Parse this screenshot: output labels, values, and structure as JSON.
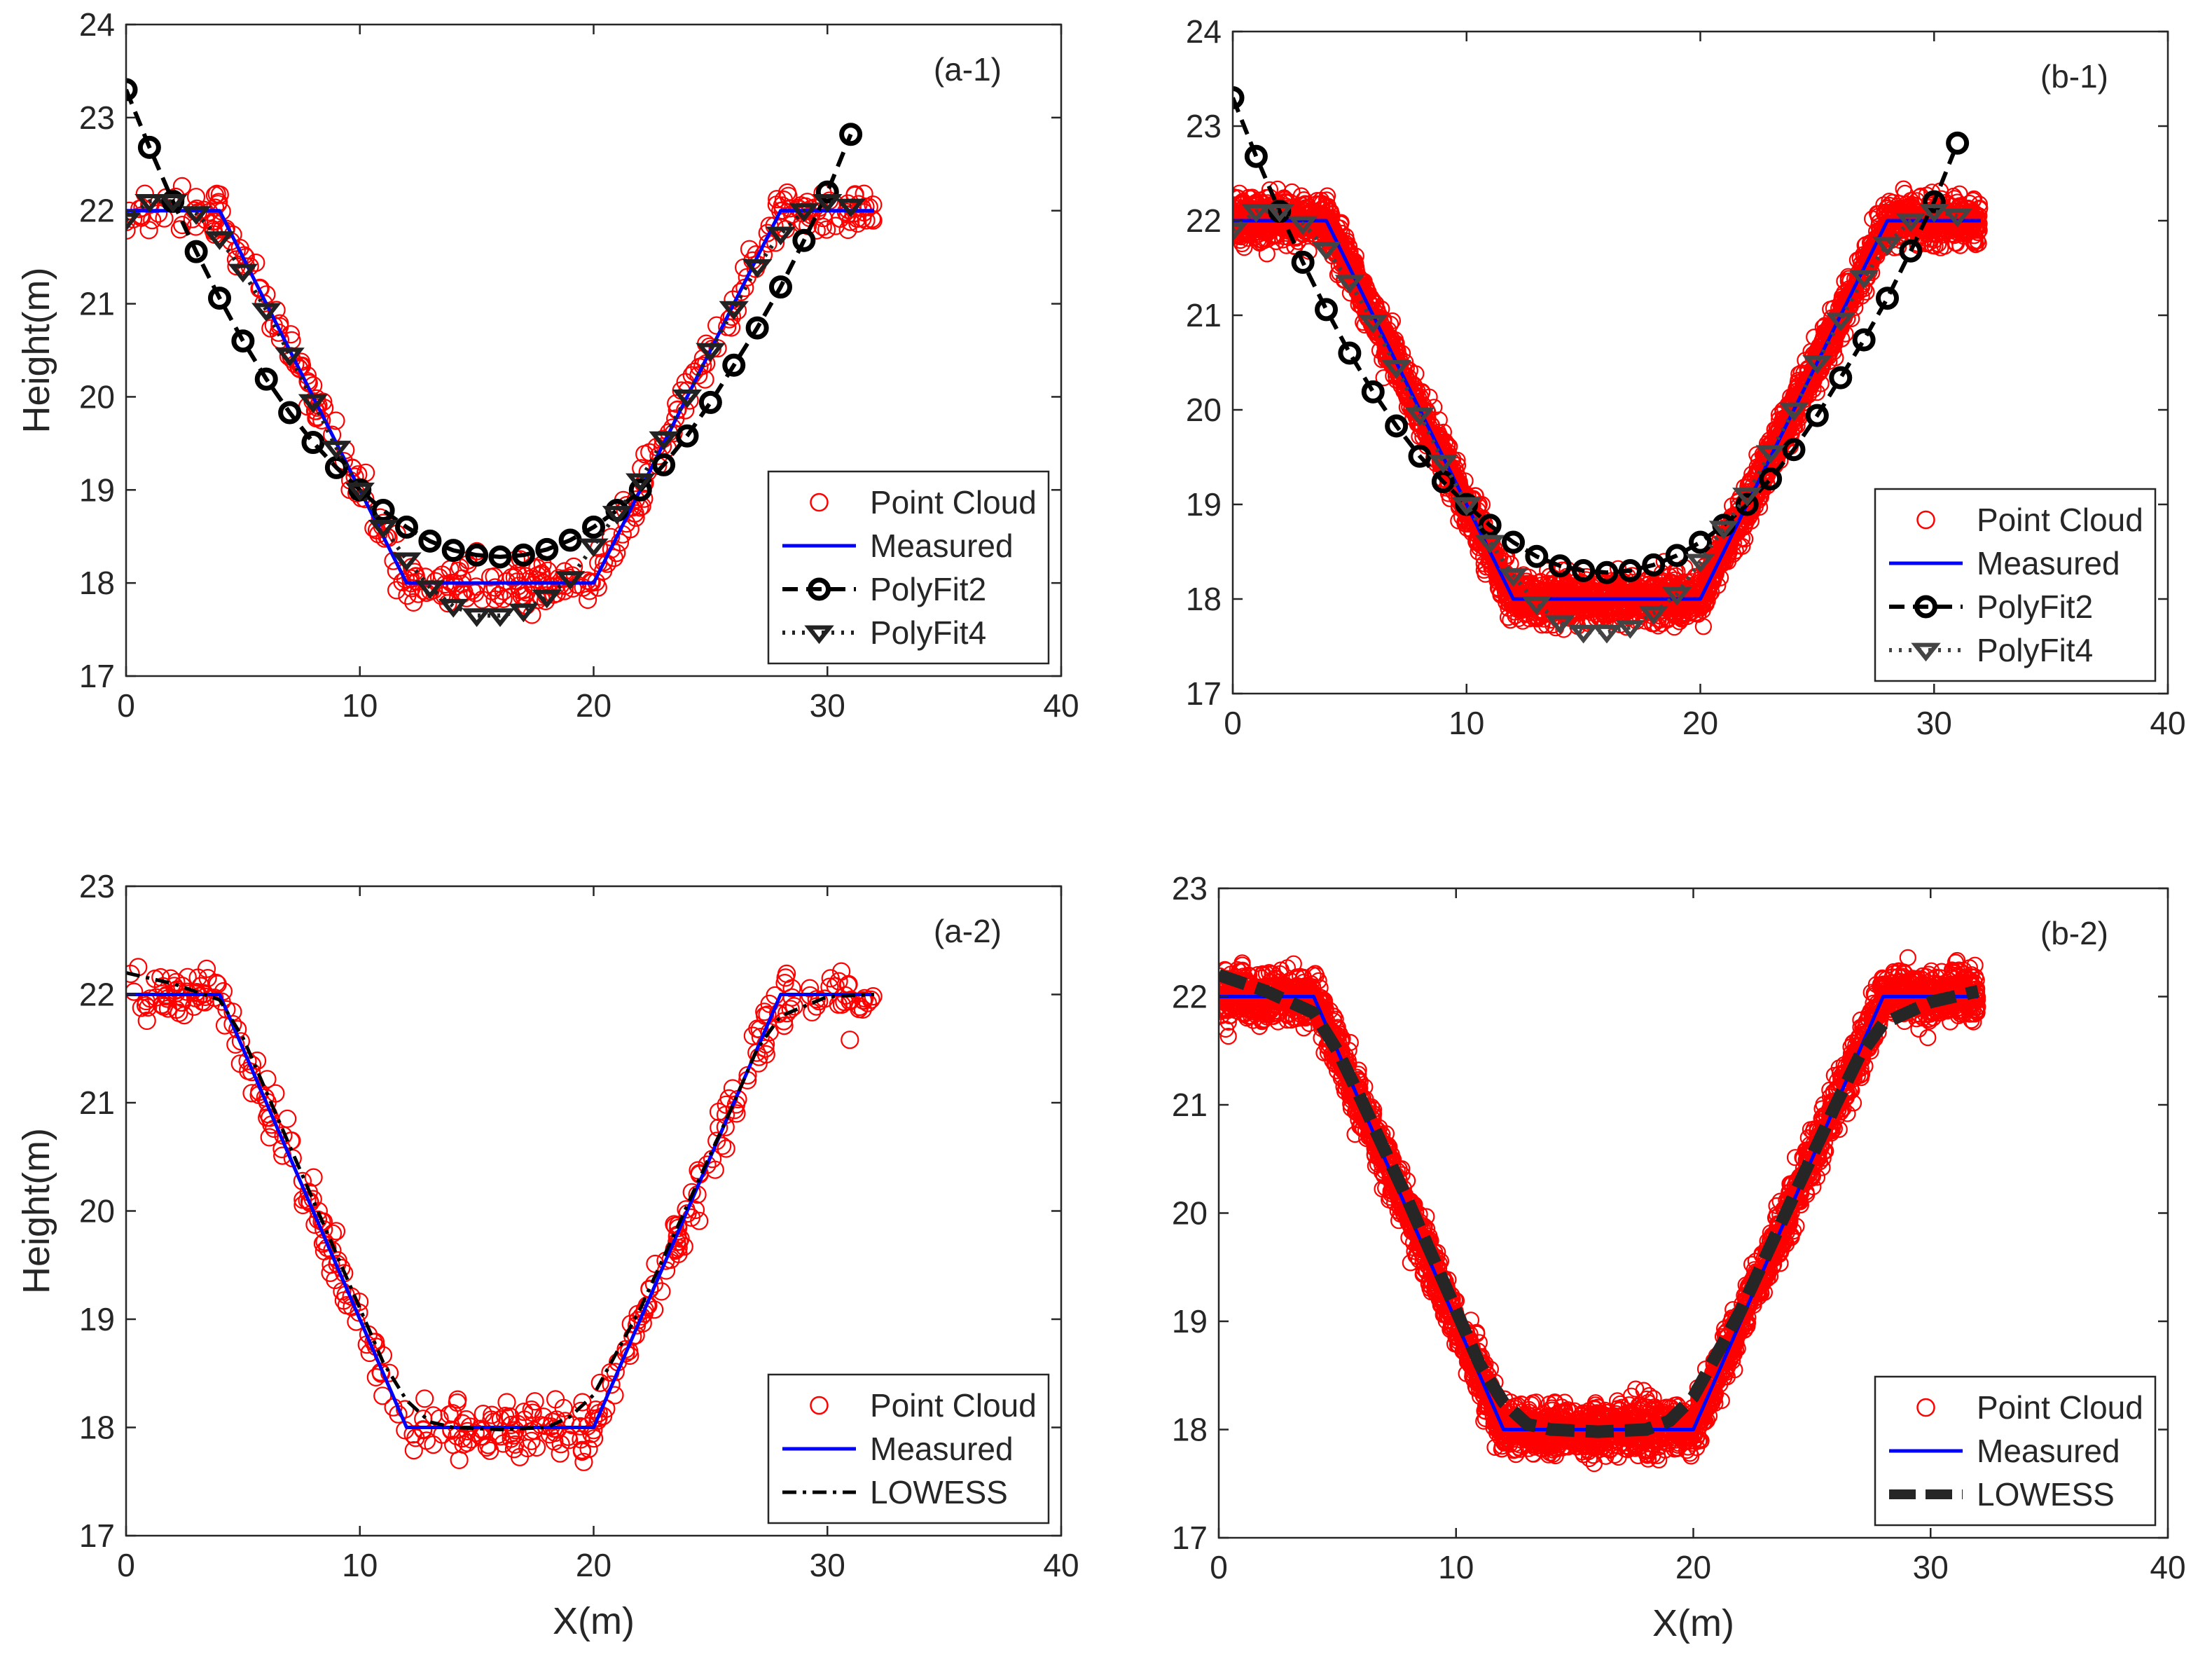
{
  "chart_data": [
    {
      "id": "a1",
      "type": "line",
      "panel_label": "(a-1)",
      "xlabel": "",
      "ylabel": "Height(m)",
      "xlim": [
        0,
        40
      ],
      "ylim": [
        17,
        24
      ],
      "xticks": [
        "0",
        "10",
        "20",
        "30",
        "40"
      ],
      "yticks": [
        "17",
        "18",
        "19",
        "20",
        "21",
        "22",
        "23",
        "24"
      ],
      "legend_position": "bottom-right",
      "cloud_size": "sparse",
      "series": [
        {
          "name": "Point Cloud",
          "style": "points",
          "color": "#ff0000"
        },
        {
          "name": "Measured",
          "style": "solid",
          "color": "#0000ff",
          "x": [
            0,
            4,
            12,
            20,
            28,
            32
          ],
          "y": [
            22,
            22,
            18,
            18,
            22,
            22
          ]
        },
        {
          "name": "PolyFit2",
          "style": "dash-circle",
          "color": "#000000",
          "x": [
            0,
            1,
            2,
            3,
            4,
            5,
            6,
            7,
            8,
            9,
            10,
            11,
            12,
            13,
            14,
            15,
            16,
            17,
            18,
            19,
            20,
            21,
            22,
            23,
            24,
            25,
            26,
            27,
            28,
            29,
            30,
            31
          ],
          "y": [
            23.3,
            22.68,
            22.1,
            21.56,
            21.06,
            20.6,
            20.19,
            19.83,
            19.51,
            19.24,
            19.0,
            18.78,
            18.6,
            18.45,
            18.35,
            18.3,
            18.28,
            18.3,
            18.36,
            18.46,
            18.6,
            18.78,
            19.0,
            19.27,
            19.58,
            19.94,
            20.34,
            20.74,
            21.18,
            21.68,
            22.2,
            22.82
          ]
        },
        {
          "name": "PolyFit4",
          "style": "dot-triangle",
          "color": "#222222",
          "x": [
            0,
            1,
            2,
            3,
            4,
            5,
            6,
            7,
            8,
            9,
            10,
            11,
            12,
            13,
            14,
            15,
            16,
            17,
            18,
            19,
            20,
            21,
            22,
            23,
            24,
            25,
            26,
            27,
            28,
            29,
            30,
            31
          ],
          "y": [
            21.9,
            22.1,
            22.1,
            21.97,
            21.7,
            21.35,
            20.93,
            20.45,
            19.95,
            19.45,
            19.0,
            18.6,
            18.25,
            17.95,
            17.75,
            17.65,
            17.65,
            17.7,
            17.85,
            18.05,
            18.4,
            18.75,
            19.1,
            19.55,
            20.0,
            20.5,
            20.95,
            21.4,
            21.75,
            22.0,
            22.1,
            22.05
          ]
        }
      ],
      "legend": [
        "Point Cloud",
        "Measured",
        "PolyFit2",
        "PolyFit4"
      ]
    },
    {
      "id": "b1",
      "type": "line",
      "panel_label": "(b-1)",
      "xlabel": "",
      "ylabel": "",
      "xlim": [
        0,
        40
      ],
      "ylim": [
        17,
        24
      ],
      "xticks": [
        "0",
        "10",
        "20",
        "30",
        "40"
      ],
      "yticks": [
        "17",
        "18",
        "19",
        "20",
        "21",
        "22",
        "23",
        "24"
      ],
      "legend_position": "bottom-right",
      "cloud_size": "dense",
      "series": [
        {
          "name": "Point Cloud",
          "style": "points",
          "color": "#ff0000"
        },
        {
          "name": "Measured",
          "style": "solid",
          "color": "#0000ff",
          "x": [
            0,
            4,
            12,
            20,
            28,
            32
          ],
          "y": [
            22,
            22,
            18,
            18,
            22,
            22
          ]
        },
        {
          "name": "PolyFit2",
          "style": "dash-circle",
          "color": "#000000",
          "x": [
            0,
            1,
            2,
            3,
            4,
            5,
            6,
            7,
            8,
            9,
            10,
            11,
            12,
            13,
            14,
            15,
            16,
            17,
            18,
            19,
            20,
            21,
            22,
            23,
            24,
            25,
            26,
            27,
            28,
            29,
            30,
            31
          ],
          "y": [
            23.3,
            22.68,
            22.1,
            21.56,
            21.06,
            20.6,
            20.19,
            19.83,
            19.51,
            19.24,
            19.0,
            18.78,
            18.6,
            18.45,
            18.35,
            18.3,
            18.28,
            18.3,
            18.36,
            18.46,
            18.6,
            18.78,
            19.0,
            19.27,
            19.58,
            19.94,
            20.34,
            20.74,
            21.18,
            21.68,
            22.2,
            22.82
          ]
        },
        {
          "name": "PolyFit4",
          "style": "dot-triangle",
          "color": "#444444",
          "x": [
            0,
            1,
            2,
            3,
            4,
            5,
            6,
            7,
            8,
            9,
            10,
            11,
            12,
            13,
            14,
            15,
            16,
            17,
            18,
            19,
            20,
            21,
            22,
            23,
            24,
            25,
            26,
            27,
            28,
            29,
            30,
            31
          ],
          "y": [
            21.9,
            22.1,
            22.1,
            21.97,
            21.7,
            21.35,
            20.93,
            20.45,
            19.95,
            19.45,
            19.0,
            18.6,
            18.25,
            17.95,
            17.75,
            17.65,
            17.65,
            17.7,
            17.85,
            18.05,
            18.4,
            18.75,
            19.1,
            19.55,
            20.0,
            20.5,
            20.95,
            21.4,
            21.75,
            22.0,
            22.1,
            22.05
          ]
        }
      ],
      "legend": [
        "Point Cloud",
        "Measured",
        "PolyFit2",
        "PolyFit4"
      ]
    },
    {
      "id": "a2",
      "type": "line",
      "panel_label": "(a-2)",
      "xlabel": "X(m)",
      "ylabel": "Height(m)",
      "xlim": [
        0,
        40
      ],
      "ylim": [
        17,
        23
      ],
      "xticks": [
        "0",
        "10",
        "20",
        "30",
        "40"
      ],
      "yticks": [
        "17",
        "18",
        "19",
        "20",
        "21",
        "22",
        "23"
      ],
      "legend_position": "bottom-right",
      "cloud_size": "sparse",
      "series": [
        {
          "name": "Point Cloud",
          "style": "points",
          "color": "#ff0000"
        },
        {
          "name": "Measured",
          "style": "solid",
          "color": "#0000ff",
          "x": [
            0,
            4,
            12,
            20,
            28,
            32
          ],
          "y": [
            22,
            22,
            18,
            18,
            22,
            22
          ]
        },
        {
          "name": "LOWESS",
          "style": "dashdot",
          "color": "#000000",
          "x": [
            0,
            2,
            4,
            5,
            6,
            8,
            10,
            11,
            12,
            13,
            14,
            16,
            18,
            19,
            20,
            21,
            22,
            24,
            26,
            27,
            28,
            30,
            32
          ],
          "y": [
            22.2,
            22.1,
            21.95,
            21.6,
            21.1,
            20.1,
            19.1,
            18.6,
            18.25,
            18.05,
            18.0,
            17.98,
            18.0,
            18.1,
            18.3,
            18.7,
            19.1,
            20.05,
            21.0,
            21.5,
            21.8,
            21.98,
            22.0
          ]
        }
      ],
      "legend": [
        "Point Cloud",
        "Measured",
        "LOWESS"
      ]
    },
    {
      "id": "b2",
      "type": "line",
      "panel_label": "(b-2)",
      "xlabel": "X(m)",
      "ylabel": "",
      "xlim": [
        0,
        40
      ],
      "ylim": [
        17,
        23
      ],
      "xticks": [
        "0",
        "10",
        "20",
        "30",
        "40"
      ],
      "yticks": [
        "17",
        "18",
        "19",
        "20",
        "21",
        "22",
        "23"
      ],
      "legend_position": "bottom-right",
      "cloud_size": "dense",
      "series": [
        {
          "name": "Point Cloud",
          "style": "points",
          "color": "#ff0000"
        },
        {
          "name": "Measured",
          "style": "solid",
          "color": "#0000ff",
          "x": [
            0,
            4,
            12,
            20,
            28,
            32
          ],
          "y": [
            22,
            22,
            18,
            18,
            22,
            22
          ]
        },
        {
          "name": "LOWESS",
          "style": "thick-dash",
          "color": "#262626",
          "x": [
            0,
            2,
            4,
            5,
            6,
            8,
            10,
            11,
            12,
            13,
            14,
            16,
            18,
            19,
            20,
            21,
            22,
            24,
            26,
            27,
            28,
            30,
            32
          ],
          "y": [
            22.2,
            22.05,
            21.85,
            21.5,
            21.05,
            20.1,
            19.1,
            18.6,
            18.25,
            18.05,
            18.0,
            17.98,
            18.0,
            18.08,
            18.3,
            18.7,
            19.1,
            20.05,
            21.0,
            21.45,
            21.75,
            21.95,
            22.05
          ]
        }
      ],
      "legend": [
        "Point Cloud",
        "Measured",
        "LOWESS"
      ]
    }
  ]
}
